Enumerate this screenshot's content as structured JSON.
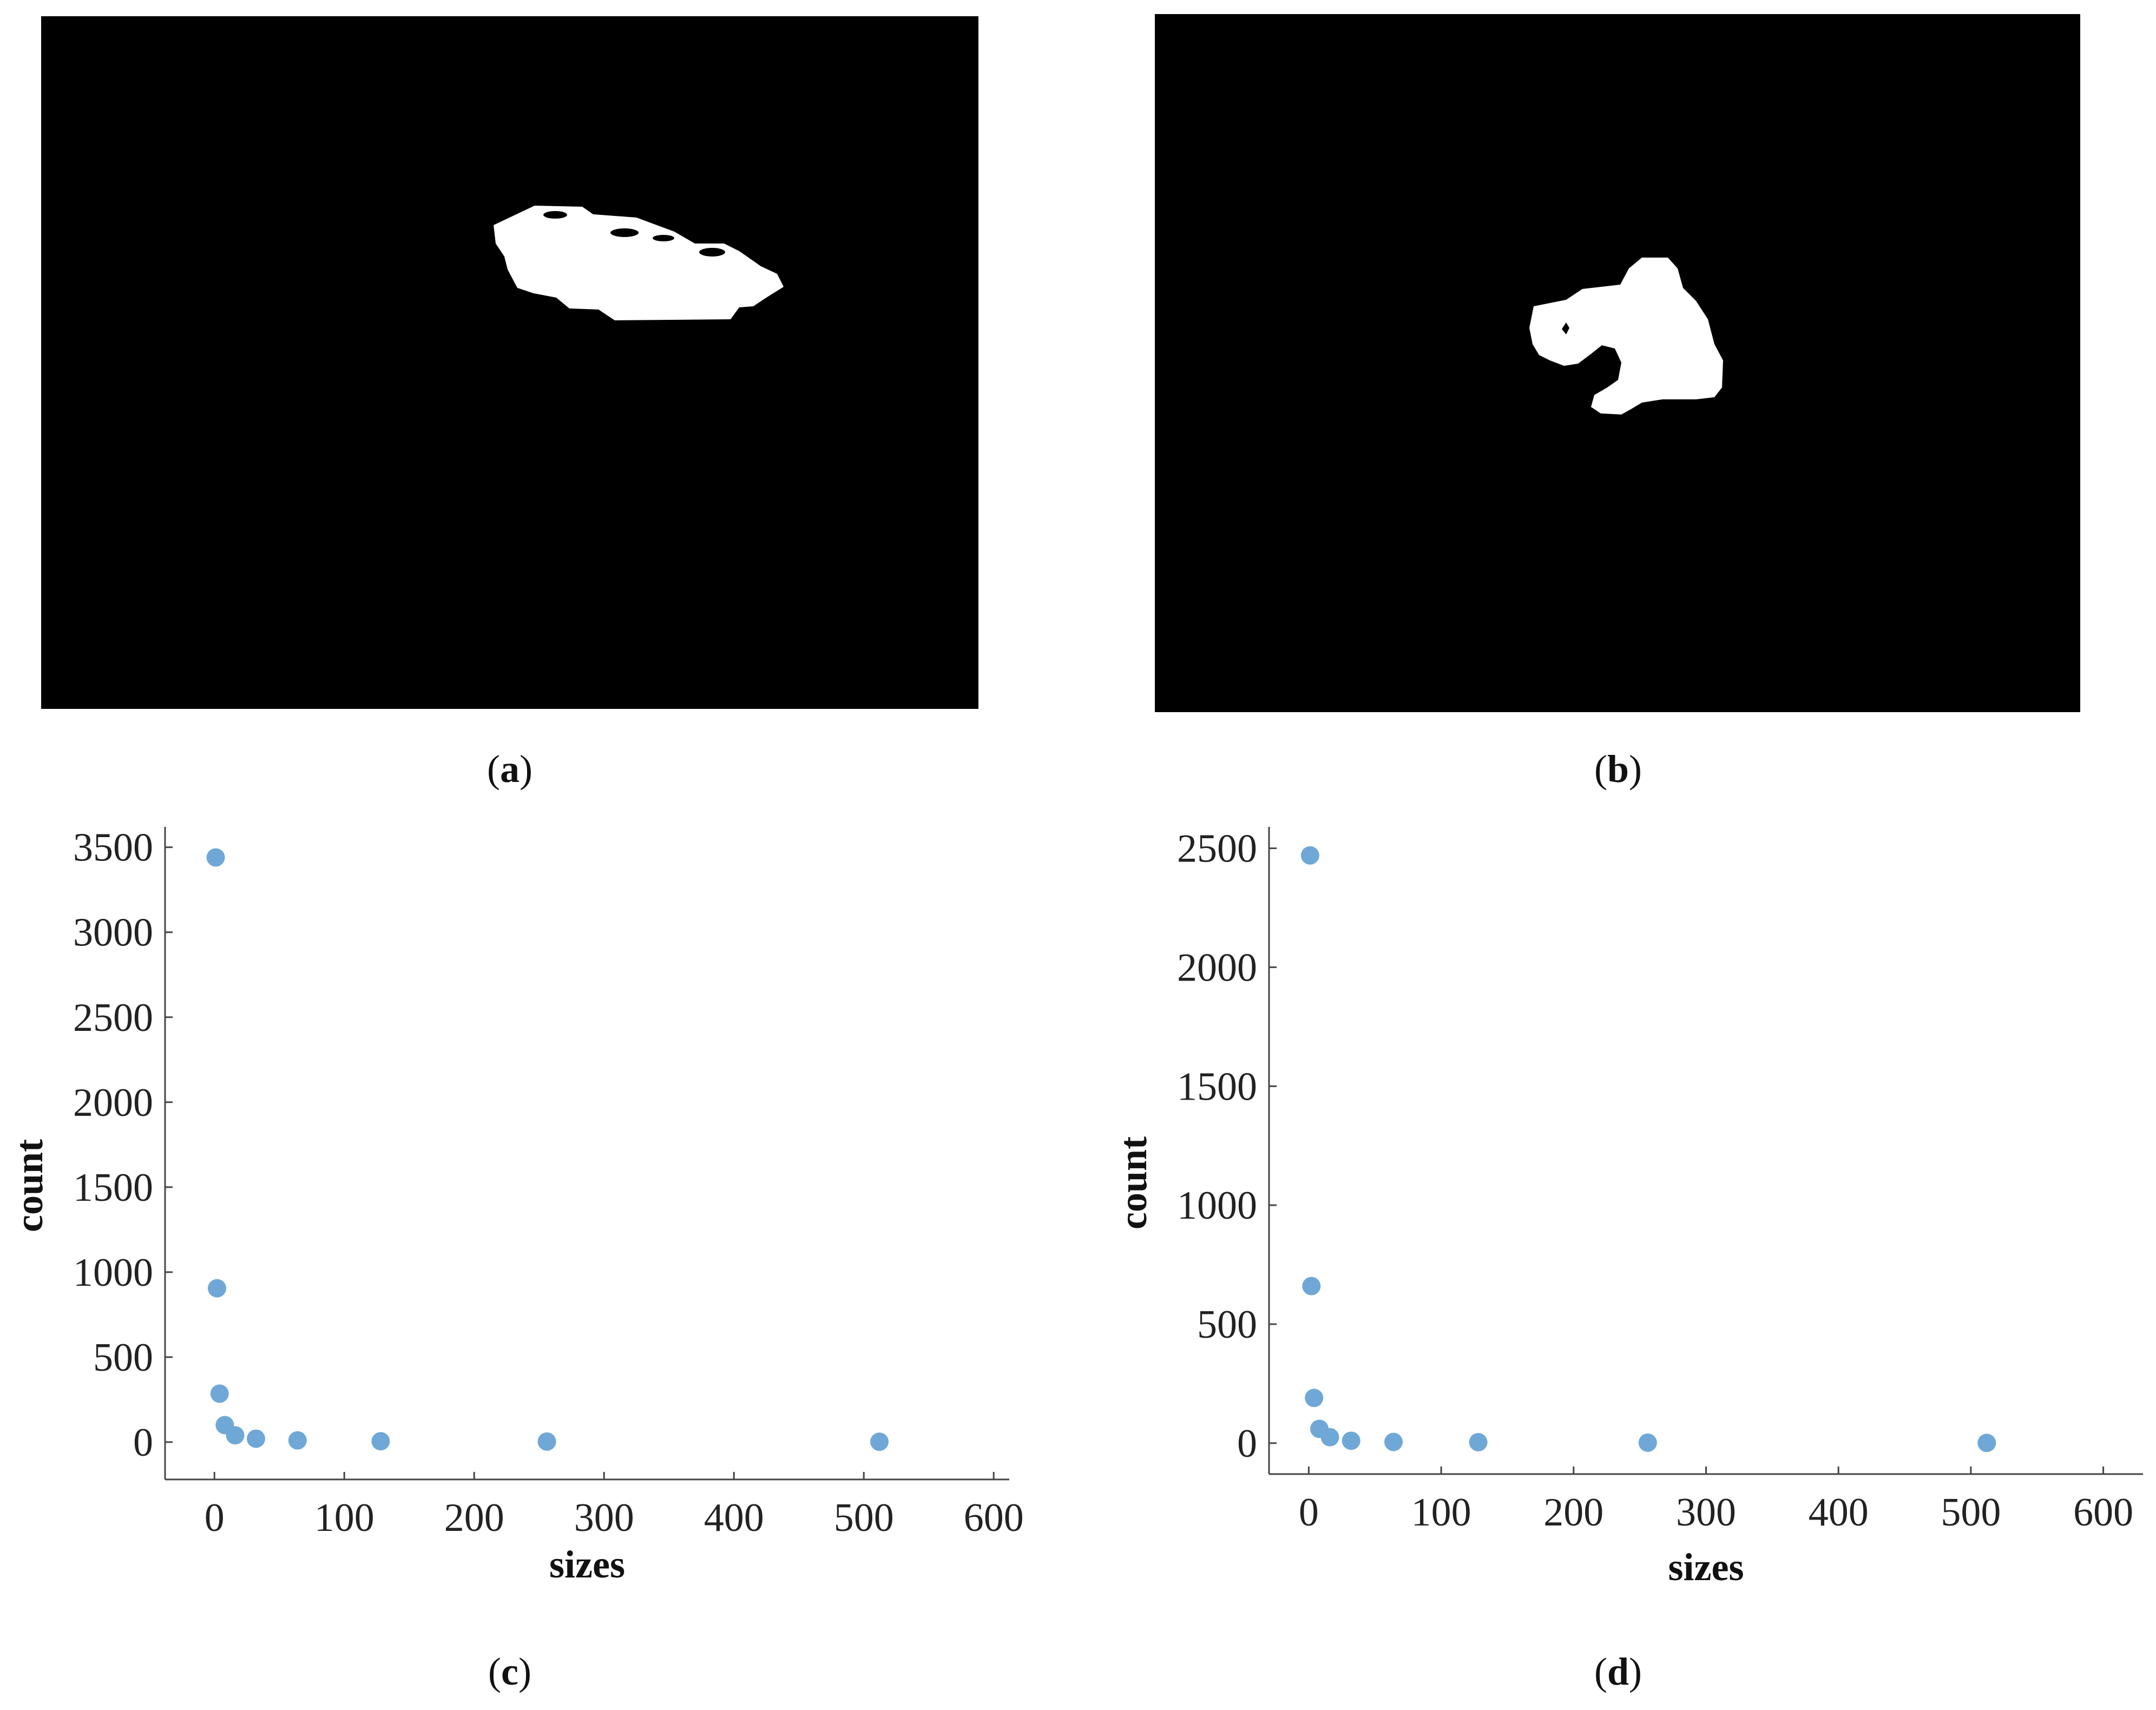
{
  "panels": {
    "a": {
      "label": "a"
    },
    "b": {
      "label": "b"
    },
    "c": {
      "label": "c"
    },
    "d": {
      "label": "d"
    }
  },
  "chart_data": [
    {
      "id": "c",
      "type": "scatter",
      "title": "",
      "xlabel": "sizes",
      "ylabel": "count",
      "xlim": [
        -38,
        612
      ],
      "ylim": [
        -220,
        3620
      ],
      "xticks": [
        0,
        100,
        200,
        300,
        400,
        500,
        600
      ],
      "yticks": [
        0,
        500,
        1000,
        1500,
        2000,
        2500,
        3000,
        3500
      ],
      "marker_color": "#6fa8d6",
      "grid": false,
      "legend": "none",
      "x": [
        1,
        2,
        4,
        8,
        16,
        32,
        64,
        128,
        256,
        512
      ],
      "y": [
        3440,
        905,
        285,
        100,
        40,
        20,
        10,
        5,
        3,
        2
      ]
    },
    {
      "id": "d",
      "type": "scatter",
      "title": "",
      "xlabel": "sizes",
      "ylabel": "count",
      "xlim": [
        -30,
        630
      ],
      "ylim": [
        -130,
        2590
      ],
      "xticks": [
        0,
        100,
        200,
        300,
        400,
        500,
        600
      ],
      "yticks": [
        0,
        500,
        1000,
        1500,
        2000,
        2500
      ],
      "marker_color": "#6fa8d6",
      "grid": false,
      "legend": "none",
      "x": [
        1,
        2,
        4,
        8,
        16,
        32,
        64,
        128,
        256,
        512
      ],
      "y": [
        2470,
        660,
        190,
        60,
        25,
        10,
        5,
        4,
        2,
        1
      ]
    }
  ]
}
